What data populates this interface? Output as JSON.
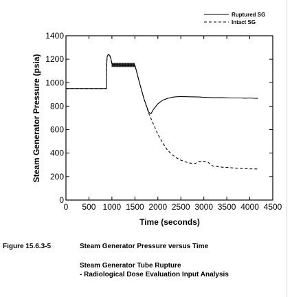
{
  "chart_data": {
    "type": "line",
    "xlabel": "Time (seconds)",
    "ylabel": "Steam Generator Pressure (psia)",
    "xlim": [
      0,
      4500
    ],
    "ylim": [
      0,
      1400
    ],
    "xticks": [
      0,
      500,
      1000,
      1500,
      2000,
      2500,
      3000,
      3500,
      4000,
      4500
    ],
    "yticks": [
      0,
      200,
      400,
      600,
      800,
      1000,
      1200,
      1400
    ],
    "grid": false,
    "legend_position": "top-right",
    "series": [
      {
        "name": "Ruptured SG",
        "style": "solid",
        "x": [
          0,
          880,
          885,
          895,
          920,
          950,
          980,
          1000,
          1030,
          1100,
          1200,
          1300,
          1400,
          1500,
          1520,
          1600,
          1700,
          1800,
          1850,
          1900,
          2000,
          2100,
          2200,
          2300,
          2400,
          2500,
          2700,
          2900,
          3000,
          3200,
          3400,
          3600,
          3800,
          3900,
          4000,
          4100,
          4180
        ],
        "y": [
          950,
          950,
          1150,
          1220,
          1240,
          1235,
          1200,
          1160,
          1150,
          1152,
          1150,
          1148,
          1150,
          1150,
          1120,
          1000,
          860,
          750,
          735,
          770,
          820,
          850,
          865,
          875,
          880,
          882,
          880,
          878,
          876,
          872,
          872,
          870,
          870,
          868,
          870,
          867,
          866
        ]
      },
      {
        "name": "Intact SG",
        "style": "dashed",
        "x": [
          0,
          880,
          885,
          895,
          920,
          950,
          980,
          1000,
          1030,
          1100,
          1200,
          1300,
          1400,
          1500,
          1520,
          1600,
          1700,
          1800,
          1900,
          2000,
          2100,
          2200,
          2300,
          2400,
          2500,
          2600,
          2700,
          2800,
          2900,
          3000,
          3100,
          3150,
          3200,
          3300,
          3400,
          3500,
          3600,
          3800,
          4000,
          4180
        ],
        "y": [
          950,
          950,
          1150,
          1220,
          1240,
          1235,
          1200,
          1160,
          1150,
          1152,
          1150,
          1148,
          1150,
          1150,
          1120,
          1000,
          860,
          740,
          650,
          560,
          490,
          430,
          390,
          360,
          340,
          325,
          315,
          310,
          330,
          330,
          320,
          300,
          290,
          285,
          280,
          278,
          275,
          270,
          266,
          265
        ]
      }
    ]
  },
  "caption": {
    "figure_number": "Figure 15.6.3-5",
    "figure_title": "Steam Generator Pressure versus Time",
    "subtitle_line1": "Steam Generator Tube Rupture",
    "subtitle_line2": "- Radiological Dose Evaluation Input Analysis"
  }
}
